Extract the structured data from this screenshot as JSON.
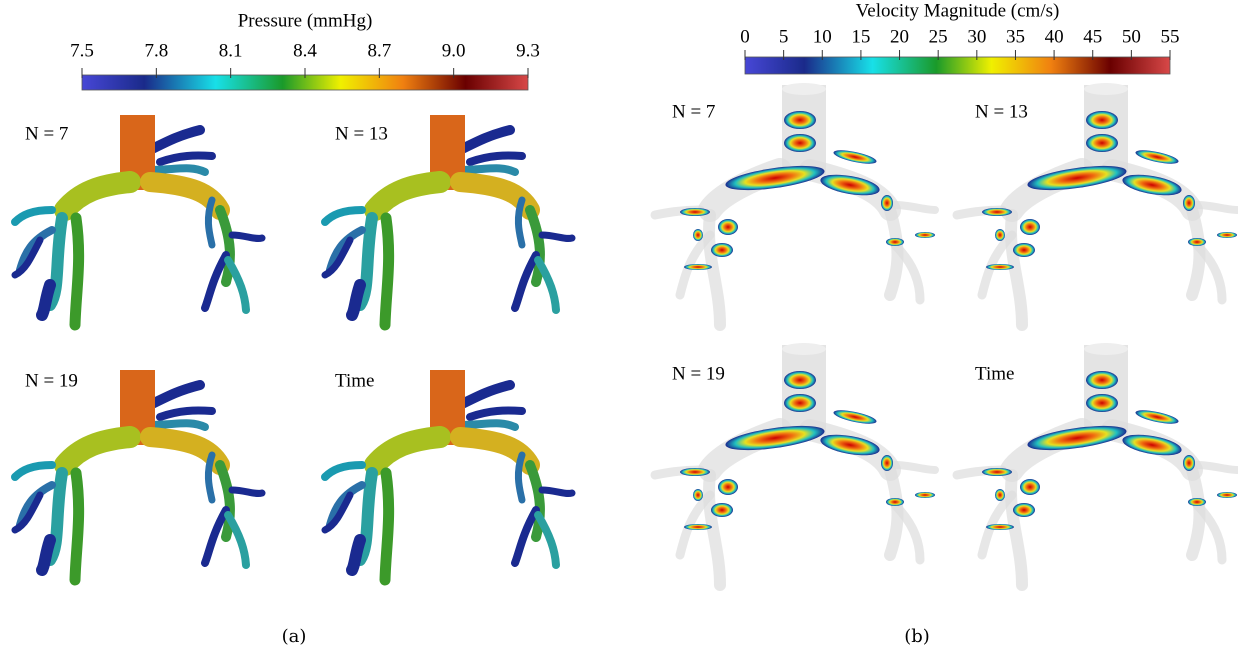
{
  "panels": [
    {
      "colorbar": {
        "title": "Pressure (mmHg)",
        "range": [
          7.5,
          9.3
        ],
        "ticks": [
          7.5,
          7.8,
          8.1,
          8.4,
          8.7,
          {
            "value": 9,
            "label": "9.0"
          },
          9.3
        ]
      },
      "labels": [
        "N = 7",
        "N = 13",
        "N = 19",
        "Time"
      ],
      "caption": "(a)"
    },
    {
      "colorbar": {
        "title": "Velocity Magnitude (cm/s)",
        "range": [
          0,
          55
        ],
        "ticks": [
          0,
          5,
          10,
          15,
          20,
          25,
          30,
          35,
          40,
          45,
          50,
          55
        ]
      },
      "labels": [
        "N = 7",
        "N = 13",
        "N = 19",
        "Time"
      ],
      "caption": "(b)"
    }
  ]
}
